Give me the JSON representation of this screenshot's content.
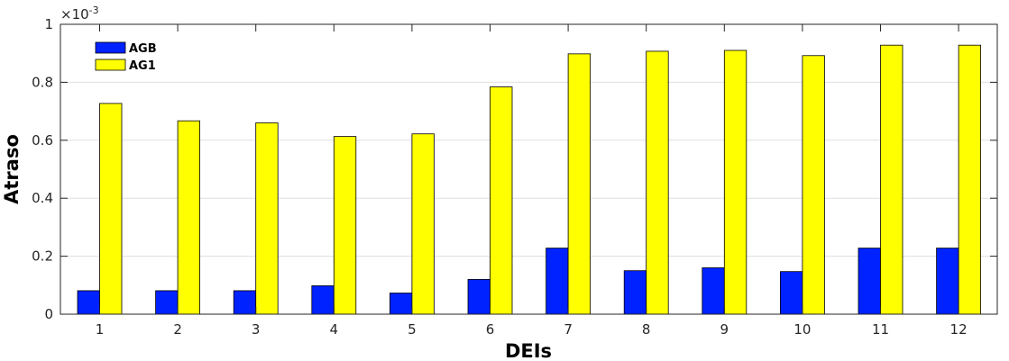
{
  "chart_data": {
    "type": "bar",
    "categories": [
      "1",
      "2",
      "3",
      "4",
      "5",
      "6",
      "7",
      "8",
      "9",
      "10",
      "11",
      "12"
    ],
    "series": [
      {
        "name": "AGB",
        "color": "#0022ff",
        "values": [
          0.081,
          0.081,
          0.081,
          0.098,
          0.073,
          0.12,
          0.228,
          0.15,
          0.16,
          0.147,
          0.228,
          0.228
        ]
      },
      {
        "name": "AG1",
        "color": "#ffff00",
        "values": [
          0.727,
          0.667,
          0.66,
          0.613,
          0.622,
          0.784,
          0.898,
          0.907,
          0.91,
          0.892,
          0.928,
          0.928
        ]
      }
    ],
    "xlabel": "DEIs",
    "ylabel": "Atraso",
    "ylim": [
      0,
      1
    ],
    "yticks": [
      "0",
      "0.2",
      "0.4",
      "0.6",
      "0.8",
      "1"
    ],
    "y_exponent_base": "×10",
    "y_exponent_power": "-3",
    "grid": "horizontal",
    "legend_position": "top-left"
  }
}
